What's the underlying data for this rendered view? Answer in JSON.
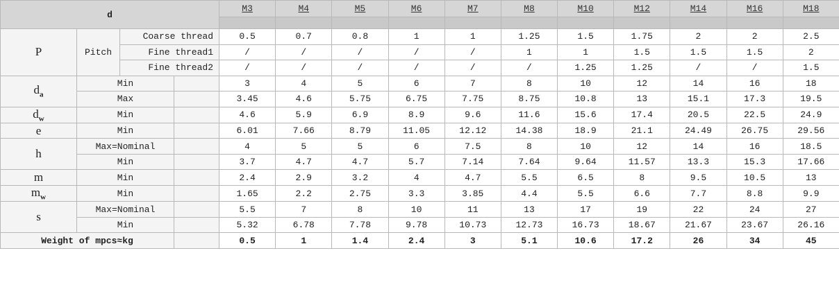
{
  "header": {
    "label": "d",
    "sizes": [
      "M3",
      "M4",
      "M5",
      "M6",
      "M7",
      "M8",
      "M10",
      "M12",
      "M14",
      "M16",
      "M18"
    ]
  },
  "groups": [
    {
      "symbol": "P",
      "sublabel": "Pitch",
      "rows": [
        {
          "label": "Coarse thread",
          "values": [
            "0.5",
            "0.7",
            "0.8",
            "1",
            "1",
            "1.25",
            "1.5",
            "1.75",
            "2",
            "2",
            "2.5"
          ]
        },
        {
          "label": "Fine thread1",
          "values": [
            "/",
            "/",
            "/",
            "/",
            "/",
            "1",
            "1",
            "1.5",
            "1.5",
            "1.5",
            "2"
          ]
        },
        {
          "label": "Fine thread2",
          "values": [
            "/",
            "/",
            "/",
            "/",
            "/",
            "/",
            "1.25",
            "1.25",
            "/",
            "/",
            "1.5"
          ]
        }
      ]
    },
    {
      "symbol": "d",
      "sub": "a",
      "rows": [
        {
          "label": "Min",
          "values": [
            "3",
            "4",
            "5",
            "6",
            "7",
            "8",
            "10",
            "12",
            "14",
            "16",
            "18"
          ]
        },
        {
          "label": "Max",
          "values": [
            "3.45",
            "4.6",
            "5.75",
            "6.75",
            "7.75",
            "8.75",
            "10.8",
            "13",
            "15.1",
            "17.3",
            "19.5"
          ]
        }
      ]
    },
    {
      "symbol": "d",
      "sub": "w",
      "rows": [
        {
          "label": "Min",
          "values": [
            "4.6",
            "5.9",
            "6.9",
            "8.9",
            "9.6",
            "11.6",
            "15.6",
            "17.4",
            "20.5",
            "22.5",
            "24.9"
          ]
        }
      ]
    },
    {
      "symbol": "e",
      "rows": [
        {
          "label": "Min",
          "values": [
            "6.01",
            "7.66",
            "8.79",
            "11.05",
            "12.12",
            "14.38",
            "18.9",
            "21.1",
            "24.49",
            "26.75",
            "29.56"
          ]
        }
      ]
    },
    {
      "symbol": "h",
      "rows": [
        {
          "label": "Max=Nominal",
          "values": [
            "4",
            "5",
            "5",
            "6",
            "7.5",
            "8",
            "10",
            "12",
            "14",
            "16",
            "18.5"
          ]
        },
        {
          "label": "Min",
          "values": [
            "3.7",
            "4.7",
            "4.7",
            "5.7",
            "7.14",
            "7.64",
            "9.64",
            "11.57",
            "13.3",
            "15.3",
            "17.66"
          ]
        }
      ]
    },
    {
      "symbol": "m",
      "rows": [
        {
          "label": "Min",
          "values": [
            "2.4",
            "2.9",
            "3.2",
            "4",
            "4.7",
            "5.5",
            "6.5",
            "8",
            "9.5",
            "10.5",
            "13"
          ]
        }
      ]
    },
    {
      "symbol": "m",
      "sub": "w",
      "rows": [
        {
          "label": "Min",
          "values": [
            "1.65",
            "2.2",
            "2.75",
            "3.3",
            "3.85",
            "4.4",
            "5.5",
            "6.6",
            "7.7",
            "8.8",
            "9.9"
          ]
        }
      ]
    },
    {
      "symbol": "s",
      "rows": [
        {
          "label": "Max=Nominal",
          "values": [
            "5.5",
            "7",
            "8",
            "10",
            "11",
            "13",
            "17",
            "19",
            "22",
            "24",
            "27"
          ]
        },
        {
          "label": "Min",
          "values": [
            "5.32",
            "6.78",
            "7.78",
            "9.78",
            "10.73",
            "12.73",
            "16.73",
            "18.67",
            "21.67",
            "23.67",
            "26.16"
          ]
        }
      ]
    }
  ],
  "weight": {
    "label": "Weight of mpcs≈kg",
    "values": [
      "0.5",
      "1",
      "1.4",
      "2.4",
      "3",
      "5.1",
      "10.6",
      "17.2",
      "26",
      "34",
      "45"
    ]
  }
}
